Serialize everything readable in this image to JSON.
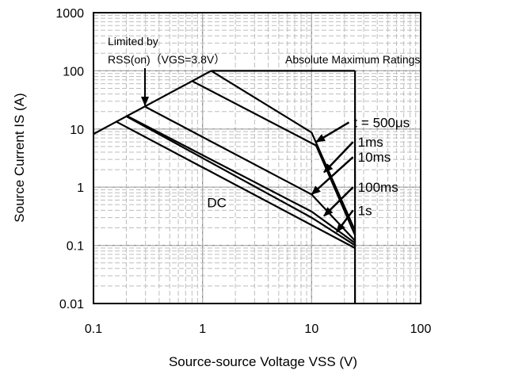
{
  "chart_data": {
    "type": "line",
    "title": "",
    "xlabel": "Source-source Voltage VSS (V)",
    "ylabel": "Source Current IS (A)",
    "xscale": "log",
    "yscale": "log",
    "xlim": [
      0.1,
      100
    ],
    "ylim": [
      0.01,
      1000
    ],
    "grid": true,
    "x_ticks": [
      "0.1",
      "1",
      "10",
      "100"
    ],
    "y_ticks": [
      "0.01",
      "0.1",
      "1",
      "10",
      "100",
      "1000"
    ],
    "series": [
      {
        "name": "t = 500μs",
        "points": [
          [
            1.2,
            100
          ],
          [
            10,
            8.7
          ],
          [
            25,
            0.18
          ]
        ]
      },
      {
        "name": "1ms",
        "points": [
          [
            0.8,
            67
          ],
          [
            11,
            5.2
          ],
          [
            25,
            0.15
          ]
        ]
      },
      {
        "name": "10ms",
        "points": [
          [
            0.3,
            24
          ],
          [
            10,
            0.75
          ],
          [
            25,
            0.12
          ]
        ]
      },
      {
        "name": "100ms",
        "points": [
          [
            0.2,
            17
          ],
          [
            10,
            0.38
          ],
          [
            25,
            0.11
          ]
        ]
      },
      {
        "name": "1s",
        "points": [
          [
            0.2,
            16.5
          ],
          [
            10,
            0.3
          ],
          [
            25,
            0.1
          ]
        ]
      },
      {
        "name": "DC",
        "points": [
          [
            0.16,
            13.5
          ],
          [
            25,
            0.09
          ]
        ]
      }
    ],
    "limits": {
      "rss_on": [
        [
          0.1,
          8.2
        ],
        [
          1.2,
          100
        ]
      ],
      "max_current_a": 100,
      "max_voltage_v": 25
    },
    "annotations": {
      "limited_by_line1": "Limited by",
      "limited_by_line2": "RSS(on)（VGS=3.8V）",
      "abs_max": "Absolute Maximum Ratings"
    },
    "label_points": {
      "t500": {
        "text": [
          22,
          13
        ],
        "arrow_to": [
          11,
          6
        ]
      },
      "1ms": {
        "text": [
          24,
          6
        ],
        "arrow_to": [
          13,
          1.8
        ]
      },
      "10ms": {
        "text": [
          24,
          3.3
        ],
        "arrow_to": [
          10,
          0.75
        ]
      },
      "100ms": {
        "text": [
          24,
          1
        ],
        "arrow_to": [
          13,
          0.32
        ]
      },
      "1s": {
        "text": [
          24,
          0.4
        ],
        "arrow_to": [
          17,
          0.17
        ]
      },
      "dc": {
        "text": [
          1.1,
          0.55
        ]
      }
    }
  }
}
